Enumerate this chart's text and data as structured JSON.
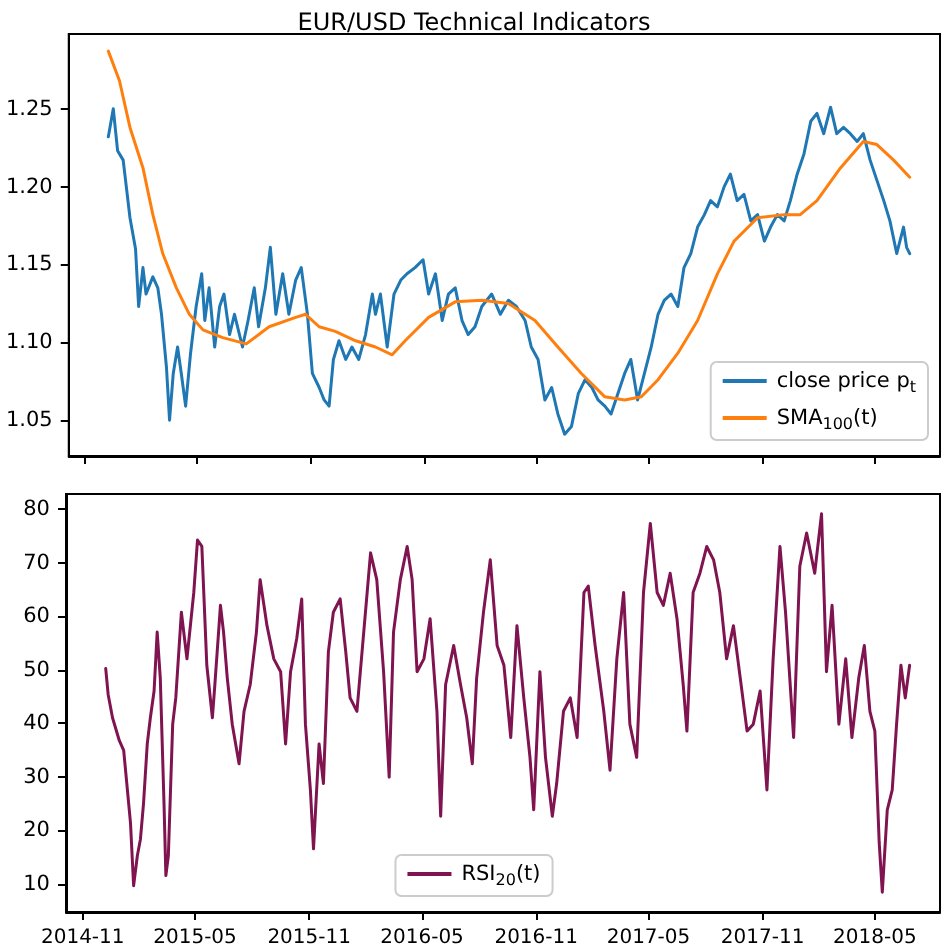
{
  "chart_data": [
    {
      "type": "line",
      "title": "EUR/USD Technical Indicators",
      "xlim": [
        "2014-10-05",
        "2018-08-14"
      ],
      "xticks": [
        "2014-11",
        "2015-05",
        "2015-11",
        "2016-05",
        "2016-11",
        "2017-05",
        "2017-11",
        "2018-05"
      ],
      "ylim": [
        1.027,
        1.298
      ],
      "yticks": [
        {
          "value": 1.05,
          "label": "1.05"
        },
        {
          "value": 1.1,
          "label": "1.10"
        },
        {
          "value": 1.15,
          "label": "1.15"
        },
        {
          "value": 1.2,
          "label": "1.20"
        },
        {
          "value": 1.25,
          "label": "1.25"
        }
      ],
      "tick_labels": "y",
      "legend": "bottom right",
      "grid": false,
      "series": [
        {
          "name": "close price p$_{t}$",
          "color": "#1f77b4",
          "x": [
            "2014-12-08",
            "2014-12-16",
            "2014-12-23",
            "2015-01-01",
            "2015-01-12",
            "2015-01-21",
            "2015-01-26",
            "2015-02-02",
            "2015-02-07",
            "2015-02-18",
            "2015-02-26",
            "2015-03-04",
            "2015-03-12",
            "2015-03-17",
            "2015-03-23",
            "2015-03-30",
            "2015-04-05",
            "2015-04-12",
            "2015-04-20",
            "2015-04-29",
            "2015-05-08",
            "2015-05-13",
            "2015-05-20",
            "2015-05-29",
            "2015-06-06",
            "2015-06-13",
            "2015-06-22",
            "2015-06-30",
            "2015-07-13",
            "2015-07-22",
            "2015-08-01",
            "2015-08-08",
            "2015-08-19",
            "2015-08-27",
            "2015-09-05",
            "2015-09-16",
            "2015-09-26",
            "2015-10-07",
            "2015-10-16",
            "2015-10-26",
            "2015-11-03",
            "2015-11-14",
            "2015-11-22",
            "2015-11-30",
            "2015-12-07",
            "2015-12-16",
            "2015-12-27",
            "2016-01-06",
            "2016-01-17",
            "2016-01-28",
            "2016-02-08",
            "2016-02-13",
            "2016-02-21",
            "2016-03-03",
            "2016-03-14",
            "2016-03-25",
            "2016-04-04",
            "2016-04-17",
            "2016-04-30",
            "2016-05-09",
            "2016-05-20",
            "2016-05-31",
            "2016-06-10",
            "2016-06-21",
            "2016-07-02",
            "2016-07-12",
            "2016-07-23",
            "2016-08-03",
            "2016-08-19",
            "2016-09-02",
            "2016-09-15",
            "2016-09-28",
            "2016-10-12",
            "2016-10-22",
            "2016-11-02",
            "2016-11-13",
            "2016-11-24",
            "2016-12-04",
            "2016-12-15",
            "2016-12-26",
            "2017-01-06",
            "2017-01-17",
            "2017-01-28",
            "2017-02-07",
            "2017-02-18",
            "2017-02-28",
            "2017-03-11",
            "2017-03-22",
            "2017-04-01",
            "2017-04-12",
            "2017-04-23",
            "2017-05-04",
            "2017-05-15",
            "2017-05-25",
            "2017-06-05",
            "2017-06-16",
            "2017-06-26",
            "2017-07-07",
            "2017-07-18",
            "2017-07-29",
            "2017-08-08",
            "2017-08-19",
            "2017-08-30",
            "2017-09-09",
            "2017-09-20",
            "2017-10-01",
            "2017-10-12",
            "2017-10-23",
            "2017-11-03",
            "2017-11-13",
            "2017-11-24",
            "2017-12-05",
            "2017-12-15",
            "2017-12-26",
            "2018-01-06",
            "2018-01-17",
            "2018-01-27",
            "2018-02-07",
            "2018-02-18",
            "2018-02-28",
            "2018-03-11",
            "2018-03-22",
            "2018-04-02",
            "2018-04-12",
            "2018-04-23",
            "2018-05-04",
            "2018-05-15",
            "2018-05-25",
            "2018-06-05",
            "2018-06-16",
            "2018-06-21",
            "2018-06-26"
          ],
          "values": [
            1.232,
            1.25,
            1.223,
            1.217,
            1.18,
            1.16,
            1.123,
            1.148,
            1.131,
            1.142,
            1.135,
            1.118,
            1.084,
            1.05,
            1.08,
            1.097,
            1.08,
            1.059,
            1.093,
            1.123,
            1.144,
            1.114,
            1.135,
            1.097,
            1.123,
            1.131,
            1.105,
            1.118,
            1.097,
            1.114,
            1.135,
            1.11,
            1.135,
            1.161,
            1.118,
            1.144,
            1.118,
            1.14,
            1.148,
            1.118,
            1.08,
            1.071,
            1.063,
            1.059,
            1.089,
            1.101,
            1.089,
            1.097,
            1.089,
            1.105,
            1.131,
            1.118,
            1.131,
            1.097,
            1.131,
            1.14,
            1.144,
            1.148,
            1.153,
            1.131,
            1.144,
            1.114,
            1.131,
            1.135,
            1.114,
            1.105,
            1.11,
            1.123,
            1.131,
            1.118,
            1.127,
            1.123,
            1.114,
            1.097,
            1.089,
            1.063,
            1.071,
            1.054,
            1.041,
            1.046,
            1.067,
            1.076,
            1.071,
            1.063,
            1.059,
            1.054,
            1.067,
            1.08,
            1.089,
            1.063,
            1.08,
            1.097,
            1.118,
            1.127,
            1.131,
            1.123,
            1.148,
            1.157,
            1.174,
            1.182,
            1.191,
            1.187,
            1.2,
            1.208,
            1.191,
            1.195,
            1.178,
            1.182,
            1.165,
            1.174,
            1.182,
            1.178,
            1.191,
            1.208,
            1.221,
            1.242,
            1.247,
            1.234,
            1.251,
            1.234,
            1.238,
            1.234,
            1.229,
            1.234,
            1.217,
            1.204,
            1.191,
            1.178,
            1.157,
            1.174,
            1.161,
            1.157
          ]
        },
        {
          "name": "SMA$_{100}$(t)",
          "color": "#ff7f0e",
          "x": [
            "2014-12-08",
            "2014-12-26",
            "2015-01-12",
            "2015-02-02",
            "2015-02-18",
            "2015-03-06",
            "2015-03-28",
            "2015-04-18",
            "2015-05-10",
            "2015-06-11",
            "2015-07-19",
            "2015-08-25",
            "2015-10-07",
            "2015-10-23",
            "2015-11-14",
            "2015-12-10",
            "2016-01-12",
            "2016-02-13",
            "2016-03-11",
            "2016-04-01",
            "2016-05-09",
            "2016-06-21",
            "2016-08-03",
            "2016-09-15",
            "2016-10-28",
            "2016-12-04",
            "2017-01-11",
            "2017-02-18",
            "2017-03-22",
            "2017-04-18",
            "2017-05-15",
            "2017-06-16",
            "2017-07-18",
            "2017-08-19",
            "2017-09-15",
            "2017-10-23",
            "2017-12-05",
            "2017-12-31",
            "2018-01-27",
            "2018-03-06",
            "2018-04-12",
            "2018-05-04",
            "2018-05-31",
            "2018-06-26"
          ],
          "values": [
            1.287,
            1.268,
            1.238,
            1.212,
            1.182,
            1.157,
            1.135,
            1.118,
            1.108,
            1.103,
            1.099,
            1.11,
            1.116,
            1.118,
            1.11,
            1.107,
            1.101,
            1.097,
            1.092,
            1.101,
            1.116,
            1.126,
            1.127,
            1.125,
            1.114,
            1.097,
            1.08,
            1.065,
            1.063,
            1.065,
            1.076,
            1.093,
            1.114,
            1.144,
            1.165,
            1.18,
            1.182,
            1.182,
            1.191,
            1.212,
            1.229,
            1.227,
            1.217,
            1.206
          ]
        }
      ]
    },
    {
      "type": "line",
      "xlim": [
        "2014-10-05",
        "2018-08-14"
      ],
      "xticks": [
        "2014-11",
        "2015-05",
        "2015-11",
        "2016-05",
        "2016-11",
        "2017-05",
        "2017-11",
        "2018-05"
      ],
      "ylim": [
        4.7,
        82.8
      ],
      "yticks": [
        10,
        20,
        30,
        40,
        50,
        60,
        70,
        80
      ],
      "legend": "bottom",
      "grid": false,
      "series": [
        {
          "name": "RSI$_{20}$(t)",
          "color": "#7f1450",
          "x": [
            "2014-12-08",
            "2014-12-12",
            "2014-12-19",
            "2014-12-30",
            "2015-01-06",
            "2015-01-17",
            "2015-01-22",
            "2015-01-28",
            "2015-02-02",
            "2015-02-07",
            "2015-02-13",
            "2015-02-18",
            "2015-02-24",
            "2015-03-01",
            "2015-03-06",
            "2015-03-12",
            "2015-03-15",
            "2015-03-19",
            "2015-03-26",
            "2015-03-31",
            "2015-04-09",
            "2015-04-18",
            "2015-04-29",
            "2015-05-05",
            "2015-05-12",
            "2015-05-20",
            "2015-05-29",
            "2015-06-02",
            "2015-06-11",
            "2015-06-16",
            "2015-06-22",
            "2015-06-30",
            "2015-07-11",
            "2015-07-19",
            "2015-07-29",
            "2015-08-08",
            "2015-08-14",
            "2015-08-25",
            "2015-09-05",
            "2015-09-16",
            "2015-09-24",
            "2015-10-02",
            "2015-10-12",
            "2015-10-20",
            "2015-10-26",
            "2015-11-03",
            "2015-11-08",
            "2015-11-17",
            "2015-11-24",
            "2015-12-02",
            "2015-12-10",
            "2015-12-21",
            "2015-12-30",
            "2016-01-06",
            "2016-01-17",
            "2016-01-28",
            "2016-02-08",
            "2016-02-18",
            "2016-02-29",
            "2016-03-09",
            "2016-03-16",
            "2016-03-27",
            "2016-04-07",
            "2016-04-15",
            "2016-04-23",
            "2016-05-04",
            "2016-05-14",
            "2016-05-25",
            "2016-05-31",
            "2016-06-08",
            "2016-06-21",
            "2016-07-02",
            "2016-07-12",
            "2016-07-21",
            "2016-07-28",
            "2016-08-08",
            "2016-08-19",
            "2016-08-30",
            "2016-09-10",
            "2016-09-21",
            "2016-10-01",
            "2016-10-12",
            "2016-10-22",
            "2016-10-28",
            "2016-11-07",
            "2016-11-16",
            "2016-11-27",
            "2016-12-04",
            "2016-12-15",
            "2016-12-26",
            "2017-01-06",
            "2017-01-17",
            "2017-01-24",
            "2017-02-04",
            "2017-02-18",
            "2017-02-28",
            "2017-03-11",
            "2017-03-22",
            "2017-04-01",
            "2017-04-12",
            "2017-04-23",
            "2017-05-04",
            "2017-05-15",
            "2017-05-25",
            "2017-06-05",
            "2017-06-16",
            "2017-06-26",
            "2017-07-02",
            "2017-07-12",
            "2017-07-23",
            "2017-08-03",
            "2017-08-14",
            "2017-08-24",
            "2017-09-04",
            "2017-09-15",
            "2017-09-26",
            "2017-10-07",
            "2017-10-17",
            "2017-10-28",
            "2017-11-08",
            "2017-11-18",
            "2017-11-29",
            "2017-12-08",
            "2017-12-21",
            "2017-12-31",
            "2018-01-11",
            "2018-01-24",
            "2018-02-04",
            "2018-02-12",
            "2018-02-21",
            "2018-03-04",
            "2018-03-15",
            "2018-03-25",
            "2018-04-05",
            "2018-04-14",
            "2018-04-23",
            "2018-05-01",
            "2018-05-08",
            "2018-05-13",
            "2018-05-21",
            "2018-05-29",
            "2018-06-05",
            "2018-06-12",
            "2018-06-19",
            "2018-06-26"
          ],
          "values": [
            50.2,
            45.3,
            41,
            36.7,
            34.9,
            21.3,
            9.6,
            15.2,
            18.3,
            25,
            36.1,
            41,
            46,
            57,
            48.4,
            25,
            11.5,
            15.2,
            39.8,
            44.7,
            60.7,
            52,
            64.4,
            74.2,
            73,
            50.8,
            41,
            47.2,
            62,
            57,
            48.4,
            39.8,
            32.4,
            42.2,
            47.2,
            57,
            66.8,
            58.2,
            52,
            49.6,
            36.1,
            49.6,
            55.8,
            63.2,
            39.8,
            27.5,
            16.5,
            36.1,
            28.7,
            53.3,
            60.7,
            63.2,
            53.3,
            44.7,
            42.2,
            57,
            71.8,
            66.8,
            49.6,
            29.9,
            57,
            66.8,
            73,
            66.8,
            49.6,
            52,
            59.5,
            42.2,
            22.6,
            47.2,
            54.5,
            47.2,
            41,
            32.4,
            48.4,
            60.7,
            70.5,
            54.5,
            50.8,
            37.3,
            58.2,
            44.7,
            33.6,
            23.8,
            49.6,
            33.6,
            22.6,
            28.7,
            42.2,
            44.7,
            37.3,
            64.4,
            65.6,
            54.5,
            42.2,
            31.2,
            52,
            64.4,
            39.8,
            33.6,
            64.4,
            77.3,
            64.4,
            62,
            68,
            59.5,
            47.2,
            38.5,
            64.4,
            68,
            73,
            70.5,
            64.4,
            52,
            58.2,
            48.4,
            38.5,
            39.8,
            46,
            27.5,
            52,
            73,
            60.7,
            37.3,
            69.3,
            75.5,
            68,
            79.1,
            49.6,
            62,
            39.8,
            52,
            37.3,
            48.4,
            54.5,
            42.2,
            38.5,
            17.6,
            8.4,
            23.8,
            27.5,
            39.8,
            50.8,
            44.7,
            50.8
          ]
        }
      ]
    }
  ]
}
